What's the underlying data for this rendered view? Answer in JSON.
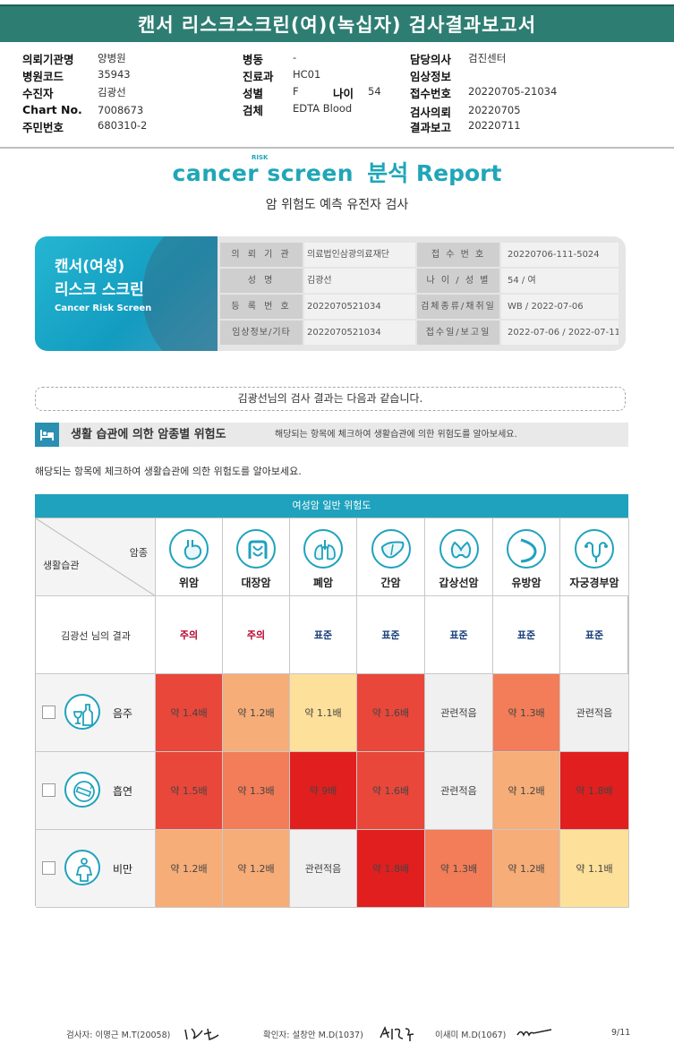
{
  "header": {
    "title": "캔서 리스크스크린(여)(녹십자) 검사결과보고서"
  },
  "meta": {
    "col1": [
      {
        "label": "의뢰기관명",
        "value": "양병원"
      },
      {
        "label": "병원코드",
        "value": "35943"
      },
      {
        "label": "수진자",
        "value": "김광선"
      },
      {
        "label": "Chart No.",
        "value": "7008673"
      },
      {
        "label": "주민번호",
        "value": "680310-2"
      }
    ],
    "col2": [
      {
        "label": "병동",
        "value": "-"
      },
      {
        "label": "진료과",
        "value": "HC01"
      },
      {
        "label": "성별",
        "value": "F"
      },
      {
        "label": "검체",
        "value": "EDTA Blood"
      }
    ],
    "age": {
      "label": "나이",
      "value": "54"
    },
    "col3": [
      {
        "label": "담당의사",
        "value": "검진센터"
      },
      {
        "label": "임상정보",
        "value": ""
      },
      {
        "label": "접수번호",
        "value": "20220705-21034"
      },
      {
        "label": "검사의뢰",
        "value": "20220705"
      },
      {
        "label": "결과보고",
        "value": "20220711"
      }
    ]
  },
  "logo": {
    "brand": "cancer screen",
    "risk_mark": "RISK",
    "report": "분석 Report"
  },
  "subtitle": "암 위험도 예측 유전자 검사",
  "card": {
    "title1": "캔서(여성)",
    "title2": "리스크 스크린",
    "title_en": "Cancer Risk Screen",
    "rows": [
      {
        "k1": "의 뢰 기 관",
        "v1": "의료법인삼광의료재단",
        "k2": "접 수 번 호",
        "v2": "20220706-111-5024"
      },
      {
        "k1": "성 명",
        "v1": "김광선",
        "k2": "나 이 / 성 별",
        "v2": "54 / 여"
      },
      {
        "k1": "등 록 번 호",
        "v1": "2022070521034",
        "k2": "검체종류/채취일",
        "v2": "WB / 2022-07-06"
      },
      {
        "k1": "임상정보/기타",
        "v1": "2022070521034",
        "k2": "접수일/보고일",
        "v2": "2022-07-06 / 2022-07-11"
      }
    ]
  },
  "result_intro": "김광선님의 검사 결과는 다음과 같습니다.",
  "section": {
    "heading": "생활 습관에 의한 암종별 위험도",
    "desc": "해당되는 항목에 체크하여 생활습관에 의한 위험도를 알아보세요."
  },
  "description": "해당되는 항목에 체크하여 생활습관에 의한 위험도를 알아보세요.",
  "table": {
    "title": "여성암 일반 위험도",
    "corner_top": "암종",
    "corner_bottom": "생활습관",
    "result_label": "김광선 님의 결과",
    "cancers": [
      {
        "name": "위암",
        "icon": "stomach-icon",
        "result": "주의",
        "status": "warn"
      },
      {
        "name": "대장암",
        "icon": "colon-icon",
        "result": "주의",
        "status": "warn"
      },
      {
        "name": "폐암",
        "icon": "lung-icon",
        "result": "표준",
        "status": "std"
      },
      {
        "name": "간암",
        "icon": "liver-icon",
        "result": "표준",
        "status": "std"
      },
      {
        "name": "갑상선암",
        "icon": "thyroid-icon",
        "result": "표준",
        "status": "std"
      },
      {
        "name": "유방암",
        "icon": "breast-icon",
        "result": "표준",
        "status": "std"
      },
      {
        "name": "자궁경부암",
        "icon": "uterus-icon",
        "result": "표준",
        "status": "std"
      }
    ],
    "habits": [
      {
        "name": "음주",
        "icon": "alcohol-icon",
        "cells": [
          {
            "text": "약 1.4배",
            "color": "#e8473a"
          },
          {
            "text": "약 1.2배",
            "color": "#f6ad78"
          },
          {
            "text": "약 1.1배",
            "color": "#fde09a"
          },
          {
            "text": "약 1.6배",
            "color": "#e8473a"
          },
          {
            "text": "관련적음",
            "color": "#f0f0f0"
          },
          {
            "text": "약 1.3배",
            "color": "#f27d58"
          },
          {
            "text": "관련적음",
            "color": "#f0f0f0"
          }
        ]
      },
      {
        "name": "흡연",
        "icon": "smoking-icon",
        "cells": [
          {
            "text": "약 1.5배",
            "color": "#e8473a"
          },
          {
            "text": "약 1.3배",
            "color": "#f27d58"
          },
          {
            "text": "약 9배",
            "color": "#e11f1f"
          },
          {
            "text": "약 1.6배",
            "color": "#e8473a"
          },
          {
            "text": "관련적음",
            "color": "#f0f0f0"
          },
          {
            "text": "약 1.2배",
            "color": "#f6ad78"
          },
          {
            "text": "약 1.8배",
            "color": "#e11f1f"
          }
        ]
      },
      {
        "name": "비만",
        "icon": "obesity-icon",
        "cells": [
          {
            "text": "약 1.2배",
            "color": "#f6ad78"
          },
          {
            "text": "약 1.2배",
            "color": "#f6ad78"
          },
          {
            "text": "관련적음",
            "color": "#f0f0f0"
          },
          {
            "text": "약 1.8배",
            "color": "#e11f1f"
          },
          {
            "text": "약 1.3배",
            "color": "#f27d58"
          },
          {
            "text": "약 1.2배",
            "color": "#f6ad78"
          },
          {
            "text": "약 1.1배",
            "color": "#fde09a"
          }
        ]
      }
    ]
  },
  "footer": {
    "examiner": "검사자: 이명근 M.T(20058)",
    "confirmer": "확인자: 설창안 M.D(1037)",
    "doctor2": "이새미 M.D(1067)",
    "page": "9/11"
  }
}
